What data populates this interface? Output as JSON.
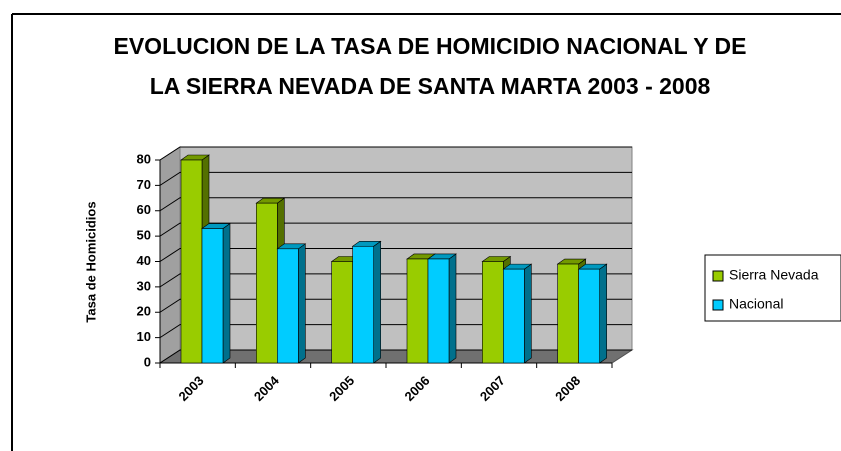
{
  "chart_data": {
    "type": "bar3d",
    "title": [
      "EVOLUCION DE LA TASA DE HOMICIDIO NACIONAL Y DE",
      "LA SIERRA NEVADA DE SANTA MARTA 2003 - 2008"
    ],
    "y_label": "Tasa de Homicidios",
    "categories": [
      "2003",
      "2004",
      "2005",
      "2006",
      "2007",
      "2008"
    ],
    "series": [
      {
        "name": "Sierra Nevada",
        "color": "#99cc00",
        "values": [
          80,
          63,
          40,
          41,
          40,
          39
        ]
      },
      {
        "name": "Nacional",
        "color": "#00ccff",
        "values": [
          53,
          45,
          46,
          41,
          37,
          37
        ]
      }
    ],
    "ylim": [
      0,
      80
    ],
    "yticks": [
      0,
      10,
      20,
      30,
      40,
      50,
      60,
      70,
      80
    ],
    "grid": true,
    "legend": "right"
  }
}
